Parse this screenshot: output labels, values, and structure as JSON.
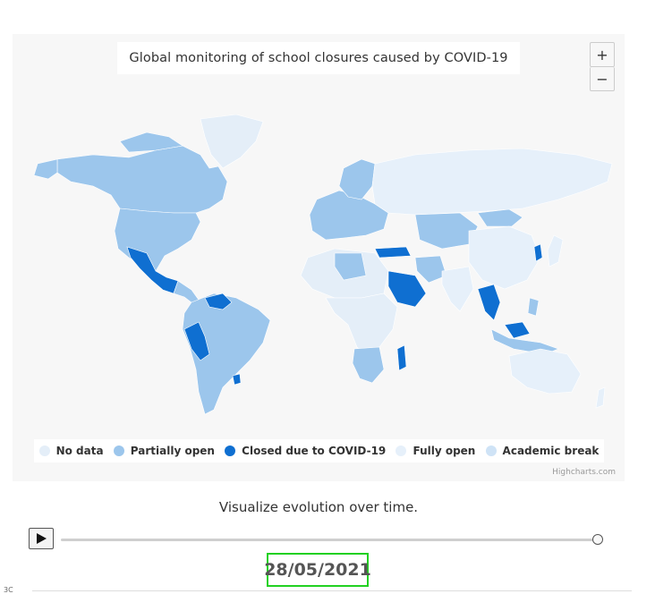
{
  "chart": {
    "title": "Global monitoring of school closures caused by COVID-19",
    "zoom_in_label": "+",
    "zoom_out_label": "−",
    "credits": "Highcharts.com",
    "legend": [
      {
        "label": "No data",
        "color": "#e4eef8"
      },
      {
        "label": "Partially open",
        "color": "#9cc6ec"
      },
      {
        "label": "Closed due to COVID-19",
        "color": "#0f6fd1"
      },
      {
        "label": "Fully open",
        "color": "#e6f0fa"
      },
      {
        "label": "Academic break",
        "color": "#cfe3f6"
      }
    ]
  },
  "timeline": {
    "caption": "Visualize evolution over time.",
    "current_date": "28/05/2021",
    "progress": 1.0
  },
  "footer": {
    "cut_text": "3C"
  }
}
